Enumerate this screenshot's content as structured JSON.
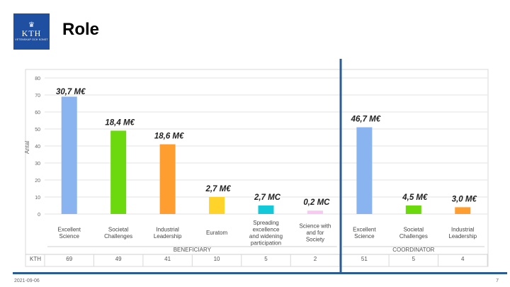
{
  "slide": {
    "title": "Role",
    "logo_text": "KTH",
    "logo_subtext": "VETENSKAP OCH KONST",
    "logo_icon": "crown-icon",
    "date": "2021-09-06",
    "page_number": "7"
  },
  "chart_data": {
    "type": "bar",
    "ylabel": "Antal",
    "ylim": [
      0,
      80
    ],
    "yticks": [
      0,
      10,
      20,
      30,
      40,
      50,
      60,
      70,
      80
    ],
    "grid": true,
    "categories": [
      "Excellent Science",
      "Societal Challenges",
      "Industrial Leadership",
      "Euratom",
      "Spreading excellence and widening participation",
      "Science with and for Society",
      "Excellent Science",
      "Societal Challenges",
      "Industrial Leadership"
    ],
    "values": [
      69,
      49,
      41,
      10,
      5,
      2,
      51,
      5,
      4
    ],
    "bar_colors": [
      "#8ab4f0",
      "#6cd80e",
      "#ff9e30",
      "#ffd42a",
      "#13c8d8",
      "#f8c9f2",
      "#8ab4f0",
      "#6cd80e",
      "#ff9e30"
    ],
    "amount_labels": [
      "30,7 M€",
      "18,4 M€",
      "18,6 M€",
      "2,7 M€",
      "2,7 MC",
      "0,2 MC",
      "46,7 M€",
      "4,5 M€",
      "3,0 M€"
    ],
    "groups": [
      {
        "name": "BENEFICIARY",
        "from": 0,
        "to": 5
      },
      {
        "name": "COORDINATOR",
        "from": 6,
        "to": 8
      }
    ],
    "table_row_label": "KTH",
    "table_values": [
      "69",
      "49",
      "41",
      "10",
      "5",
      "2",
      "51",
      "5",
      "4"
    ]
  }
}
